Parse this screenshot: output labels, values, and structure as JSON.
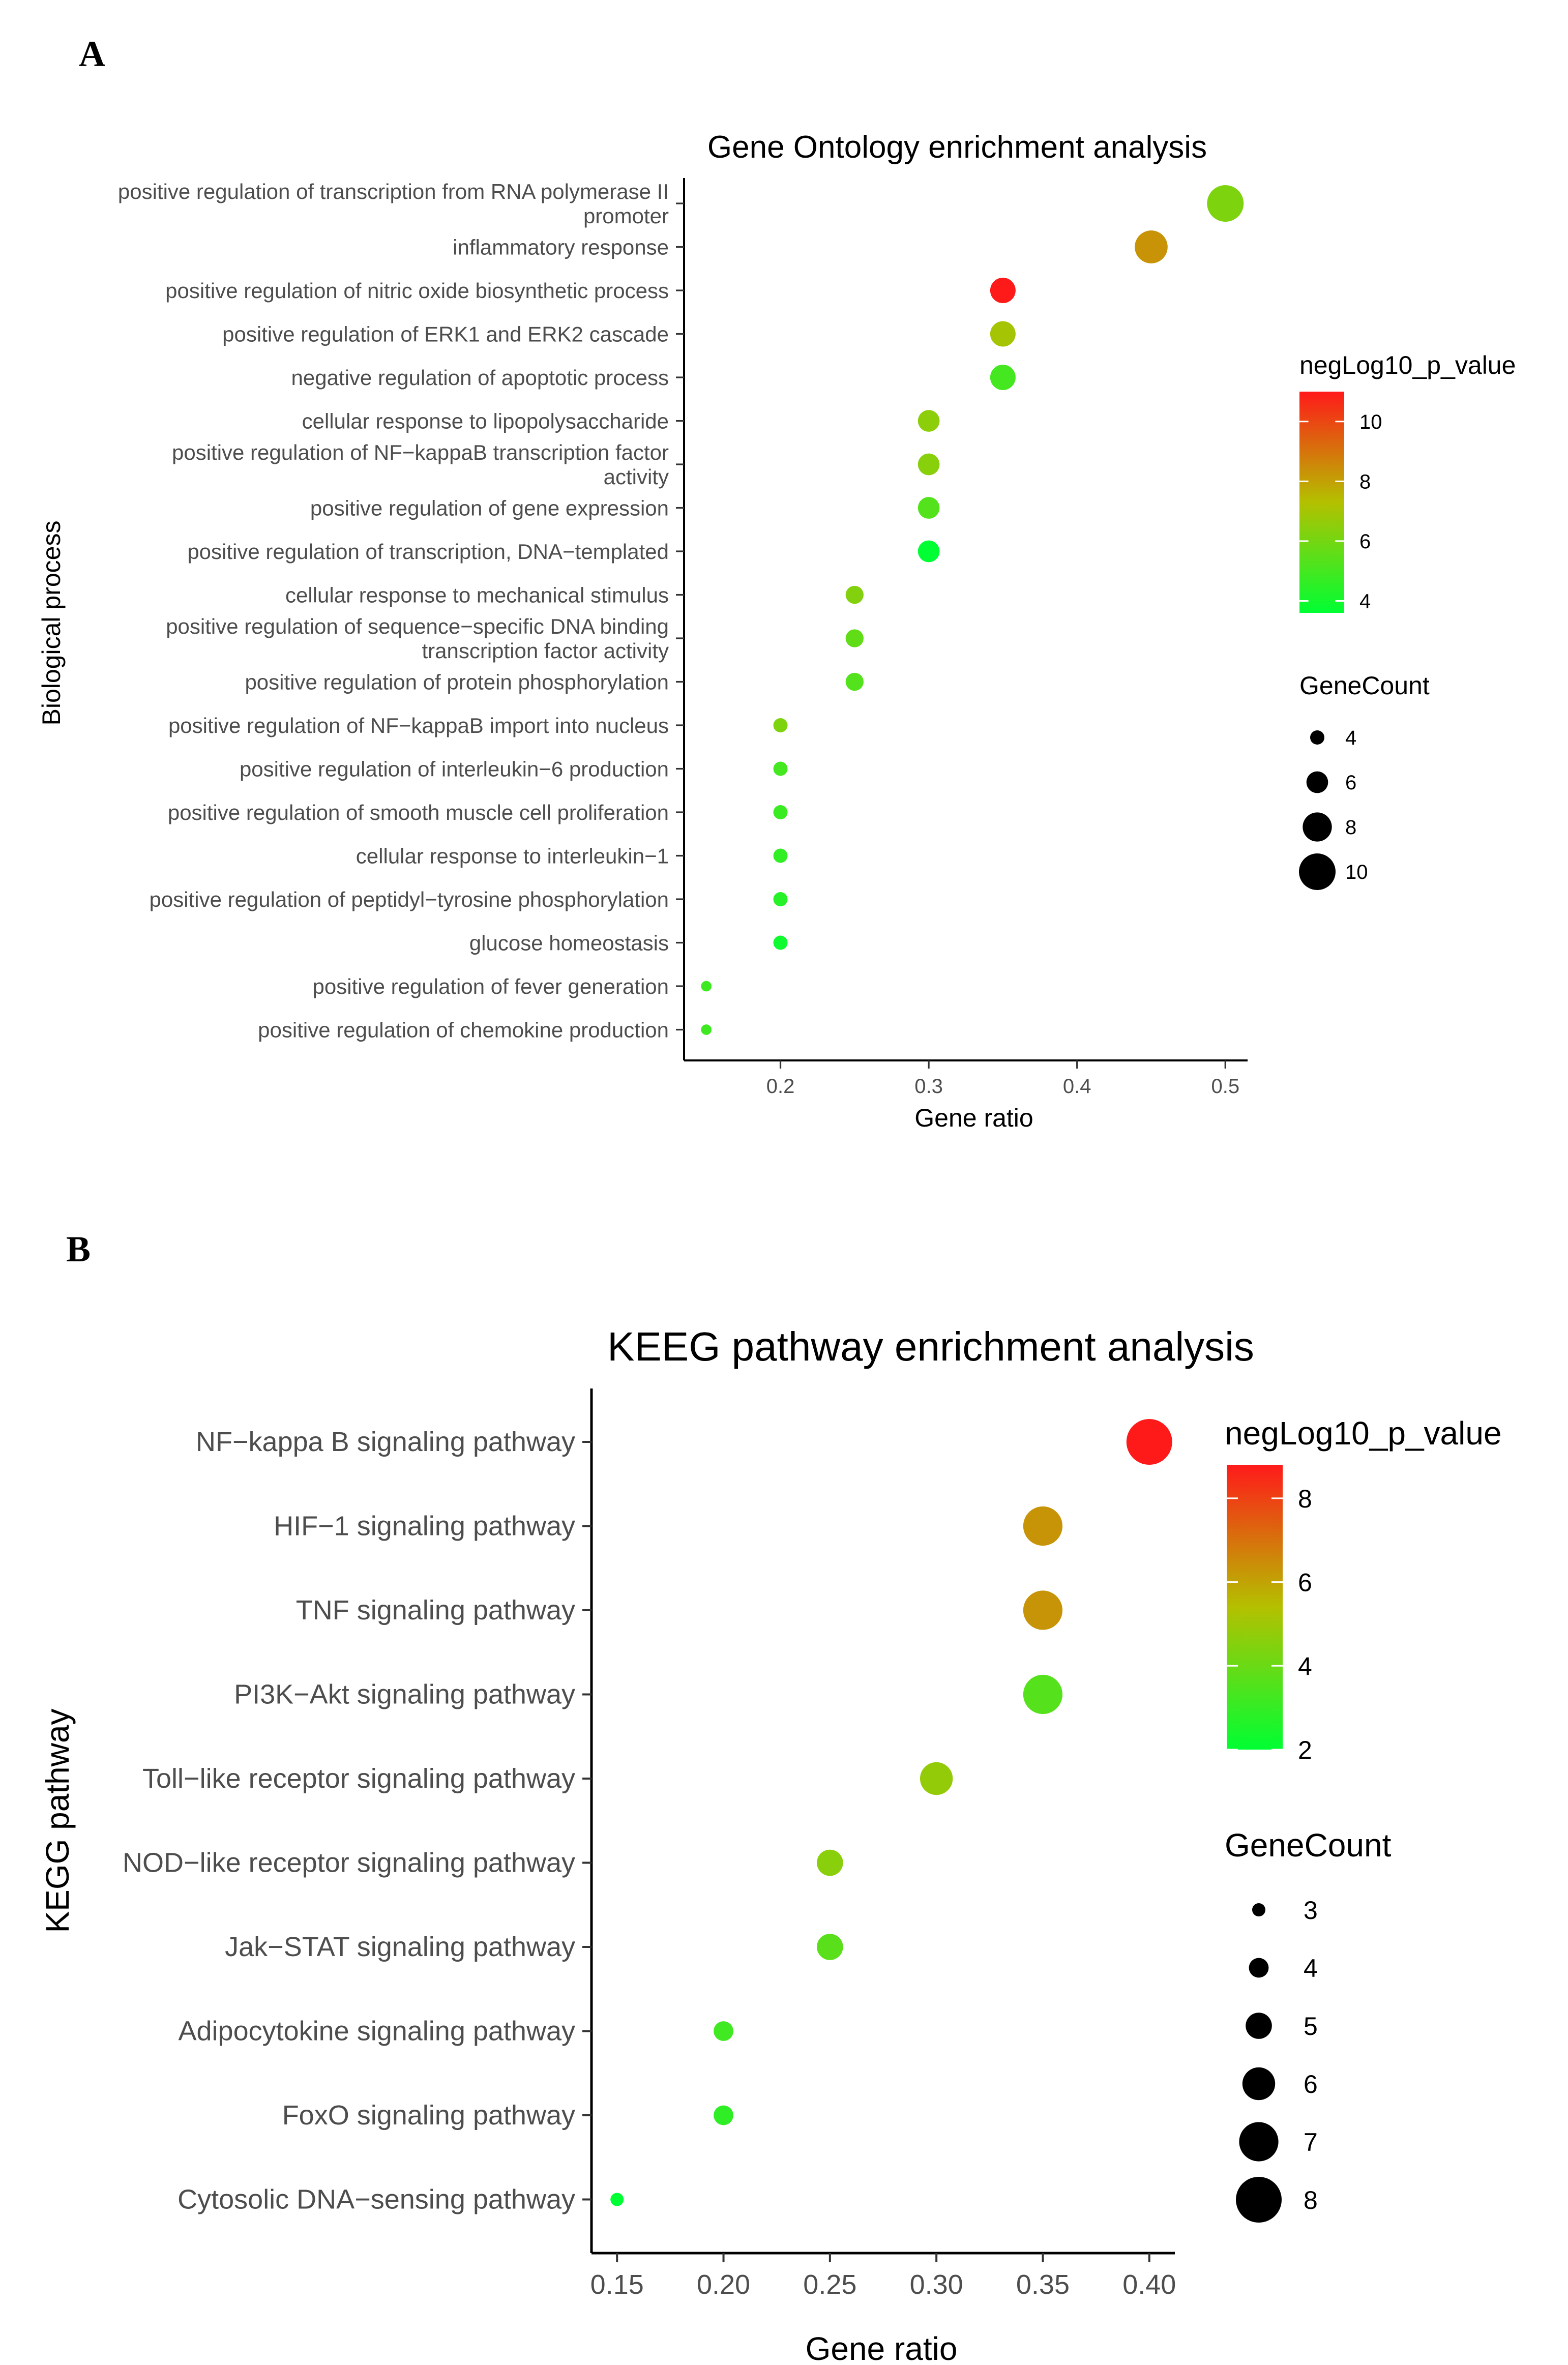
{
  "panels": [
    {
      "label": "A"
    },
    {
      "label": "B"
    }
  ],
  "chart_data": [
    {
      "type": "scatter",
      "title": "Gene Ontology enrichment analysis",
      "xlabel": "Gene ratio",
      "ylabel": "Biological process",
      "xlim": [
        0.135,
        0.515
      ],
      "xticks": [
        "0.2",
        "0.3",
        "0.4",
        "0.5"
      ],
      "xtick_values": [
        0.2,
        0.3,
        0.4,
        0.5
      ],
      "categories": [
        "positive regulation of transcription from RNA polymerase II promoter",
        "inflammatory response",
        "positive regulation of nitric oxide biosynthetic process",
        "positive regulation of ERK1 and ERK2 cascade",
        "negative regulation of apoptotic process",
        "cellular response to lipopolysaccharide",
        "positive regulation of NF-kappaB transcription factor activity",
        "positive regulation of gene expression",
        "positive regulation of transcription, DNA-templated",
        "cellular response to mechanical stimulus",
        "positive regulation of sequence-specific DNA binding transcription factor activity",
        "positive regulation of protein phosphorylation",
        "positive regulation of NF-kappaB import into nucleus",
        "positive regulation of interleukin-6 production",
        "positive regulation of smooth muscle cell proliferation",
        "cellular response to interleukin-1",
        "positive regulation of peptidyl-tyrosine phosphorylation",
        "glucose homeostasis",
        "positive regulation of fever generation",
        "positive regulation of chemokine production"
      ],
      "category_display": [
        [
          "positive regulation of transcription from RNA polymerase II",
          "promoter"
        ],
        [
          "inflammatory response"
        ],
        [
          "positive regulation of nitric oxide biosynthetic process"
        ],
        [
          "positive regulation of ERK1 and ERK2 cascade"
        ],
        [
          "negative regulation of apoptotic process"
        ],
        [
          "cellular response to lipopolysaccharide"
        ],
        [
          "positive regulation of NF−kappaB transcription factor",
          "activity"
        ],
        [
          "positive regulation of gene expression"
        ],
        [
          "positive regulation of transcription, DNA−templated"
        ],
        [
          "cellular response to mechanical stimulus"
        ],
        [
          "positive regulation of sequence−specific DNA binding",
          "transcription factor activity"
        ],
        [
          "positive regulation of protein phosphorylation"
        ],
        [
          "positive regulation of NF−kappaB import into nucleus"
        ],
        [
          "positive regulation of interleukin−6 production"
        ],
        [
          "positive regulation of smooth muscle cell proliferation"
        ],
        [
          "cellular response to interleukin−1"
        ],
        [
          "positive regulation of peptidyl−tyrosine phosphorylation"
        ],
        [
          "glucose homeostasis"
        ],
        [
          "positive regulation of fever generation"
        ],
        [
          "positive regulation of chemokine production"
        ]
      ],
      "x": [
        0.5,
        0.45,
        0.35,
        0.35,
        0.35,
        0.3,
        0.3,
        0.3,
        0.3,
        0.25,
        0.25,
        0.25,
        0.2,
        0.2,
        0.2,
        0.2,
        0.2,
        0.2,
        0.15,
        0.15
      ],
      "gene_count": [
        10,
        9,
        7,
        7,
        7,
        6,
        6,
        6,
        6,
        5,
        5,
        5,
        4,
        4,
        4,
        4,
        4,
        4,
        3,
        3
      ],
      "neglog10_p_value": [
        6.2,
        8.3,
        11.0,
        7.0,
        5.0,
        6.5,
        6.4,
        5.3,
        3.6,
        6.3,
        5.6,
        5.3,
        6.2,
        5.0,
        4.8,
        4.6,
        4.4,
        3.9,
        4.9,
        4.9
      ],
      "color_legend": {
        "title": "negLog10_p_value",
        "ticks": [
          "4",
          "6",
          "8",
          "10"
        ],
        "tick_values": [
          4,
          6,
          8,
          10
        ],
        "range": [
          3.6,
          11.0
        ],
        "low_color": "#00ff33",
        "mid_color": "#b4c000",
        "high_color": "#ff1a1a"
      },
      "size_legend": {
        "title": "GeneCount",
        "labels": [
          "4",
          "6",
          "8",
          "10"
        ],
        "values": [
          4,
          6,
          8,
          10
        ]
      }
    },
    {
      "type": "scatter",
      "title": "KEEG pathway enrichment analysis",
      "xlabel": "Gene ratio",
      "ylabel": "KEGG pathway",
      "xlim": [
        0.138,
        0.412
      ],
      "xticks": [
        "0.15",
        "0.20",
        "0.25",
        "0.30",
        "0.35",
        "0.40"
      ],
      "xtick_values": [
        0.15,
        0.2,
        0.25,
        0.3,
        0.35,
        0.4
      ],
      "categories": [
        "NF-kappa B signaling pathway",
        "HIF-1 signaling pathway",
        "TNF signaling pathway",
        "PI3K-Akt signaling pathway",
        "Toll-like receptor signaling pathway",
        "NOD-like receptor signaling pathway",
        "Jak-STAT signaling pathway",
        "Adipocytokine signaling pathway",
        "FoxO signaling pathway",
        "Cytosolic DNA-sensing pathway"
      ],
      "category_display": [
        [
          "NF−kappa B signaling pathway"
        ],
        [
          "HIF−1 signaling pathway"
        ],
        [
          "TNF signaling pathway"
        ],
        [
          "PI3K−Akt signaling pathway"
        ],
        [
          "Toll−like receptor signaling pathway"
        ],
        [
          "NOD−like receptor signaling pathway"
        ],
        [
          "Jak−STAT signaling pathway"
        ],
        [
          "Adipocytokine signaling pathway"
        ],
        [
          "FoxO signaling pathway"
        ],
        [
          "Cytosolic DNA−sensing pathway"
        ]
      ],
      "x": [
        0.4,
        0.35,
        0.35,
        0.35,
        0.3,
        0.25,
        0.25,
        0.2,
        0.2,
        0.15
      ],
      "gene_count": [
        8,
        7,
        7,
        7,
        6,
        5,
        5,
        4,
        4,
        3
      ],
      "neglog10_p_value": [
        8.8,
        6.3,
        6.3,
        3.6,
        4.8,
        4.6,
        3.7,
        3.2,
        2.9,
        2.0
      ],
      "color_legend": {
        "title": "negLog10_p_value",
        "ticks": [
          "2",
          "4",
          "6",
          "8"
        ],
        "tick_values": [
          2,
          4,
          6,
          8
        ],
        "range": [
          2.0,
          8.8
        ],
        "low_color": "#00ff33",
        "mid_color": "#b4c000",
        "high_color": "#ff1a1a"
      },
      "size_legend": {
        "title": "GeneCount",
        "labels": [
          "3",
          "4",
          "5",
          "6",
          "7",
          "8"
        ],
        "values": [
          3,
          4,
          5,
          6,
          7,
          8
        ]
      }
    }
  ]
}
